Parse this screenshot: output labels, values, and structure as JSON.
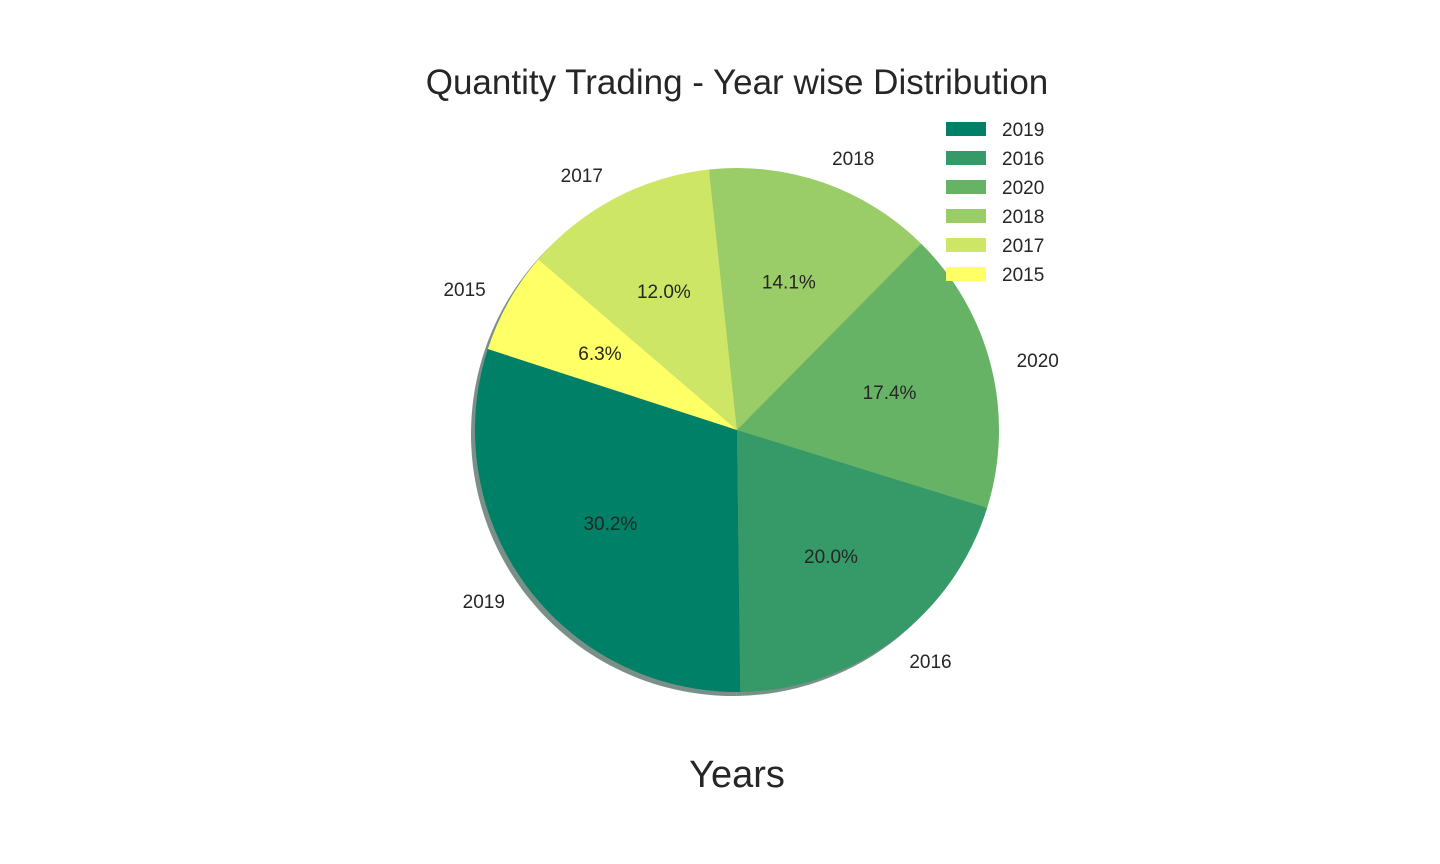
{
  "chart_data": {
    "type": "pie",
    "title": "Quantity Trading - Year wise Distribution",
    "xlabel": "Years",
    "categories": [
      "2019",
      "2016",
      "2020",
      "2018",
      "2017",
      "2015"
    ],
    "values": [
      30.2,
      20.0,
      17.4,
      14.1,
      12.0,
      6.3
    ],
    "value_labels": [
      "30.2%",
      "20.0%",
      "17.4%",
      "14.1%",
      "12.0%",
      "6.3%"
    ],
    "colors": [
      "#008066",
      "#359a68",
      "#67b366",
      "#9acc67",
      "#cde666",
      "#ffff66"
    ],
    "start_angle_deg": 162,
    "direction": "counterclockwise",
    "shadow": true,
    "legend": {
      "placement": "top-right",
      "entries": [
        "2019",
        "2016",
        "2020",
        "2018",
        "2017",
        "2015"
      ]
    }
  }
}
